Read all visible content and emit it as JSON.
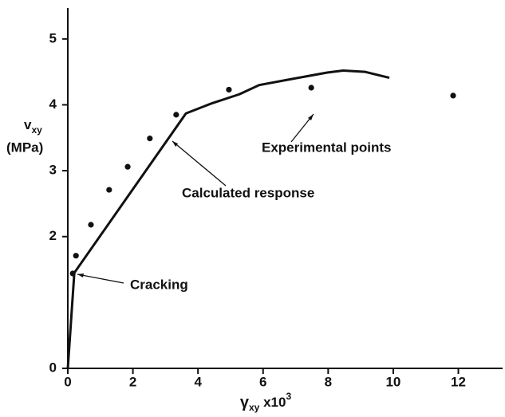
{
  "chart_data": {
    "type": "line",
    "xlim": [
      0,
      13.36
    ],
    "ylim": [
      0,
      5.47
    ],
    "xticks": [
      0,
      2,
      4,
      6,
      8,
      10,
      12
    ],
    "yticks": [
      0,
      2,
      3,
      4,
      5
    ],
    "x_label": {
      "symbol": "γ",
      "subscript": "xy",
      "suffix": " x10",
      "superscript": "3"
    },
    "y_label": {
      "symbol": "v",
      "subscript": "xy",
      "unit": "(MPa)"
    },
    "series": [
      {
        "type": "line",
        "color": "#111111",
        "x": [
          0,
          0.2,
          3.63,
          4.41,
          5.27,
          5.88,
          6.86,
          7.97,
          8.46,
          9.14,
          9.88
        ],
        "values": [
          0,
          1.45,
          3.87,
          4.02,
          4.16,
          4.3,
          4.39,
          4.49,
          4.52,
          4.5,
          4.41
        ]
      },
      {
        "type": "scatter",
        "color": "#111111",
        "x": [
          0.15,
          0.25,
          0.71,
          1.27,
          1.84,
          2.52,
          3.33,
          4.95,
          7.48,
          11.84
        ],
        "values": [
          1.44,
          1.71,
          2.18,
          2.71,
          3.06,
          3.49,
          3.85,
          4.23,
          4.26,
          4.14
        ]
      }
    ],
    "annotations": [
      "Experimental points",
      "Calculated response",
      "Cracking"
    ]
  }
}
